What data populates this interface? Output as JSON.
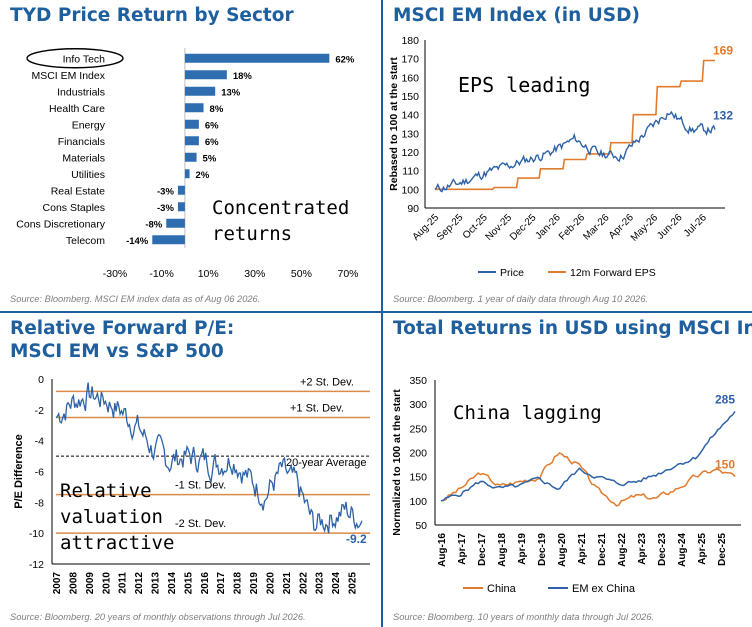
{
  "colors": {
    "accent": "#1f5f9e",
    "bar": "#2e6db0",
    "price": "#2e62a6",
    "eps": "#e07b2d",
    "band": "#d98c4a",
    "source": "#7f7f7f",
    "annot": "#000000"
  },
  "panels": [
    {
      "title_lines": [
        "TYD Price Return by Sector"
      ],
      "source": "Source: Bloomberg. MSCI EM index data as of Aug 06 2026.",
      "annotation_lines": [
        "Concentrated",
        "returns"
      ]
    },
    {
      "title_lines": [
        "MSCI EM Index (in USD)"
      ],
      "source": "Source: Bloomberg. 1 year of daily data through Aug 10 2026.",
      "annotation_lines": [
        "EPS leading"
      ]
    },
    {
      "title_lines": [
        "Relative Forward P/E:",
        "MSCI EM vs S&P 500"
      ],
      "source": "Source: Bloomberg. 20 years of monthly observations through Jul 2026.",
      "annotation_lines": [
        "Relative",
        "valuation",
        "attractive"
      ]
    },
    {
      "title_lines": [
        "Total Returns in USD using MSCI Indexes"
      ],
      "source": "Source: Bloomberg. 10 years of monthly data through Jul 2026.",
      "annotation_lines": [
        "China lagging"
      ]
    }
  ],
  "chart_data": [
    {
      "type": "bar",
      "orientation": "horizontal",
      "title": "TYD Price Return by Sector",
      "categories": [
        "Info Tech",
        "MSCI EM Index",
        "Industrials",
        "Health Care",
        "Energy",
        "Financials",
        "Materials",
        "Utilities",
        "Real Estate",
        "Cons Staples",
        "Cons Discretionary",
        "Telecom"
      ],
      "values": [
        62,
        18,
        13,
        8,
        6,
        6,
        5,
        2,
        -3,
        -3,
        -8,
        -14
      ],
      "value_labels": [
        "62%",
        "18%",
        "13%",
        "8%",
        "6%",
        "6%",
        "5%",
        "2%",
        "-3%",
        "-3%",
        "-8%",
        "-14%"
      ],
      "xlim": [
        -30,
        70
      ],
      "xticks": [
        -30,
        -10,
        10,
        30,
        50,
        70
      ],
      "xtick_labels": [
        "-30%",
        "-10%",
        "10%",
        "30%",
        "50%",
        "70%"
      ],
      "highlighted": "Info Tech"
    },
    {
      "type": "line",
      "title": "MSCI EM Index (in USD)",
      "ylabel": "Rebased to 100 at the start",
      "x": [
        "Aug-25",
        "Sep-25",
        "Oct-25",
        "Nov-25",
        "Dec-25",
        "Jan-26",
        "Feb-26",
        "Mar-26",
        "Apr-26",
        "May-26",
        "Jun-26",
        "Jul-26",
        "Aug-26"
      ],
      "xtick_labels": [
        "Aug-25",
        "Sep-25",
        "Oct-25",
        "Nov-25",
        "Dec-25",
        "Jan-26",
        "Feb-26",
        "Mar-26",
        "Apr-26",
        "May-26",
        "Jun-26",
        "Jul-26"
      ],
      "ylim": [
        90,
        180
      ],
      "yticks": [
        90,
        100,
        110,
        120,
        130,
        140,
        150,
        160,
        170,
        180
      ],
      "series": [
        {
          "name": "Price",
          "values": [
            100,
            103,
            108,
            112,
            116,
            120,
            127,
            119,
            118,
            130,
            142,
            132,
            132
          ],
          "end_label": "132"
        },
        {
          "name": "12m Forward EPS",
          "values": [
            100,
            100,
            100,
            101,
            106,
            111,
            116,
            119,
            125,
            140,
            155,
            158,
            169
          ],
          "end_label": "169"
        }
      ],
      "legend": "bottom"
    },
    {
      "type": "line",
      "title": "Relative Forward P/E: MSCI EM vs S&P 500",
      "ylabel": "P/E Difference",
      "x": [
        2007,
        2008,
        2009,
        2010,
        2011,
        2012,
        2013,
        2014,
        2015,
        2016,
        2017,
        2018,
        2019,
        2020,
        2021,
        2022,
        2023,
        2024,
        2025,
        2026
      ],
      "xtick_labels": [
        "2007",
        "2008",
        "2009",
        "2010",
        "2011",
        "2012",
        "2013",
        "2014",
        "2015",
        "2016",
        "2017",
        "2018",
        "2019",
        "2020",
        "2021",
        "2022",
        "2023",
        "2024",
        "2025"
      ],
      "ylim": [
        -12,
        0
      ],
      "yticks": [
        0,
        -2,
        -4,
        -6,
        -8,
        -10,
        -12
      ],
      "series": [
        {
          "name": "Relative P/E",
          "values": [
            -2.5,
            -1.5,
            -1.0,
            -1.3,
            -2.0,
            -3.0,
            -4.5,
            -5.3,
            -5.0,
            -5.2,
            -5.5,
            -5.0,
            -6.5,
            -7.5,
            -6.0,
            -7.0,
            -9.5,
            -9.0,
            -8.5,
            -9.2
          ],
          "end_label": "-9.2"
        }
      ],
      "reference_lines": [
        {
          "label": "+2 St. Dev.",
          "value": -0.8
        },
        {
          "label": "+1 St. Dev.",
          "value": -2.5
        },
        {
          "label": "20-year Average",
          "value": -5.0,
          "style": "dashed"
        },
        {
          "label": "-1 St. Dev.",
          "value": -7.5
        },
        {
          "label": "-2 St. Dev.",
          "value": -10.0
        }
      ]
    },
    {
      "type": "line",
      "title": "Total Returns in USD using MSCI Indexes",
      "ylabel": "Normalized to 100 at the start",
      "x": [
        "Aug-16",
        "Apr-17",
        "Dec-17",
        "Aug-18",
        "Apr-19",
        "Dec-19",
        "Aug-20",
        "Apr-21",
        "Dec-21",
        "Aug-22",
        "Apr-23",
        "Dec-23",
        "Aug-24",
        "Apr-25",
        "Dec-25",
        "Jul-26"
      ],
      "xtick_labels": [
        "Aug-16",
        "Apr-17",
        "Dec-17",
        "Aug-18",
        "Apr-19",
        "Dec-19",
        "Aug-20",
        "Apr-21",
        "Dec-21",
        "Aug-22",
        "Apr-23",
        "Dec-23",
        "Aug-24",
        "Apr-25",
        "Dec-25"
      ],
      "ylim": [
        50,
        350
      ],
      "yticks": [
        50,
        100,
        150,
        200,
        250,
        300,
        350
      ],
      "series": [
        {
          "name": "China",
          "values": [
            100,
            125,
            158,
            130,
            140,
            150,
            200,
            175,
            120,
            95,
            110,
            105,
            125,
            150,
            165,
            150
          ],
          "end_label": "150"
        },
        {
          "name": "EM ex China",
          "values": [
            100,
            115,
            140,
            125,
            130,
            145,
            125,
            165,
            150,
            135,
            140,
            155,
            175,
            190,
            240,
            285
          ],
          "end_label": "285"
        }
      ],
      "legend": "bottom"
    }
  ]
}
